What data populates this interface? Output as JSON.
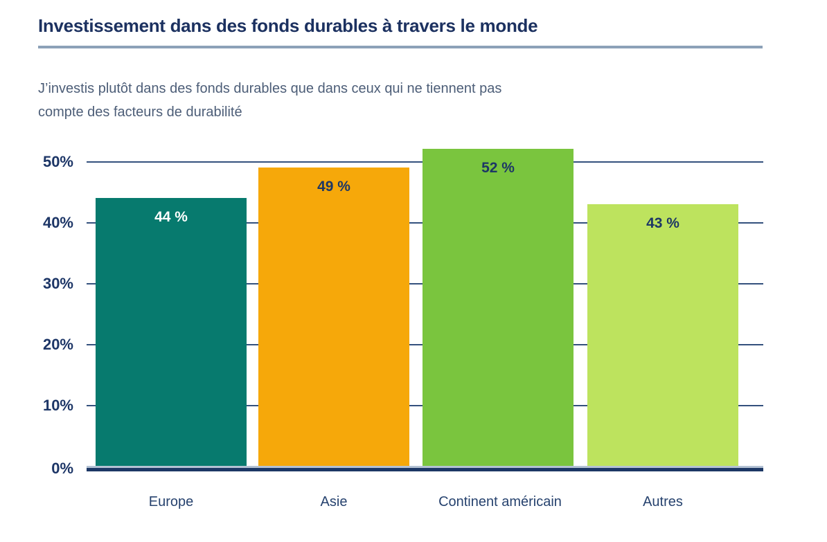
{
  "header": {
    "title": "Investissement dans des fonds durables à travers le monde",
    "subtitle": "J’investis plutôt dans des fonds durables que dans ceux qui ne tiennent pas compte des facteurs de durabilité"
  },
  "chart_data": {
    "type": "bar",
    "title": "Investissement dans des fonds durables à travers le monde",
    "subtitle": "J’investis plutôt dans des fonds durables que dans ceux qui ne tiennent pas compte des facteurs de durabilité",
    "categories": [
      "Europe",
      "Asie",
      "Continent américain",
      "Autres"
    ],
    "values": [
      44,
      49,
      52,
      43
    ],
    "value_labels": [
      "44 %",
      "49 %",
      "52 %",
      "43 %"
    ],
    "bar_colors": [
      "#077a6e",
      "#f6a80a",
      "#7ac53e",
      "#bde35e"
    ],
    "value_label_colors": [
      "#ffffff",
      "#1d3765",
      "#1d3765",
      "#1d3765"
    ],
    "xlabel": "",
    "ylabel": "",
    "ylim": [
      0,
      50
    ],
    "y_ticks": [
      "0%",
      "10%",
      "20%",
      "30%",
      "40%",
      "50%"
    ],
    "grid": true,
    "legend": false
  },
  "colors": {
    "title_text": "#1c3160",
    "subtitle_text": "#4c5d77",
    "rule": "#8ca1b8",
    "gridline": "#33507d",
    "axis": "#1c3765",
    "tick_text": "#1c3566"
  }
}
